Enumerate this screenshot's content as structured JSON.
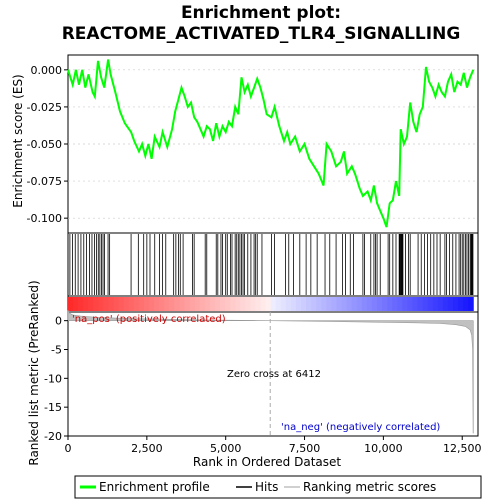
{
  "chart_data": {
    "type": "line",
    "title_line1": "Enrichment plot:",
    "title_line2": "REACTOME_ACTIVATED_TLR4_SIGNALLING",
    "ylabel_top": "Enrichment score (ES)",
    "ylabel_bottom": "Ranked list metric (PreRanked)",
    "xlabel": "Rank in Ordered Dataset",
    "xlim": [
      0,
      13000
    ],
    "x_ticks": [
      0,
      2500,
      5000,
      7500,
      10000,
      12500
    ],
    "x_tick_labels": [
      "0",
      "2,500",
      "5,000",
      "7,500",
      "10,000",
      "12,500"
    ],
    "es_ylim": [
      -0.11,
      0.01
    ],
    "es_ticks": [
      0.0,
      -0.025,
      -0.05,
      -0.075,
      -0.1
    ],
    "es_tick_labels": [
      "0.000",
      "-0.025",
      "-0.050",
      "-0.075",
      "-0.100"
    ],
    "metric_ylim": [
      -20,
      1.5
    ],
    "metric_ticks": [
      0,
      -5,
      -10,
      -15,
      -20
    ],
    "metric_tick_labels": [
      "0",
      "-5",
      "-10",
      "-15",
      "-20"
    ],
    "zero_cross": 6412,
    "zero_cross_label": "Zero cross at 6412",
    "pos_label": "'na_pos' (positively correlated)",
    "neg_label": "'na_neg' (negatively correlated)",
    "n_genes": 12850,
    "es_points": [
      [
        0,
        0
      ],
      [
        150,
        -0.01
      ],
      [
        250,
        0.0
      ],
      [
        350,
        -0.01
      ],
      [
        450,
        0.0
      ],
      [
        550,
        -0.012
      ],
      [
        650,
        -0.003
      ],
      [
        780,
        -0.015
      ],
      [
        850,
        -0.018
      ],
      [
        950,
        0.006
      ],
      [
        1050,
        -0.005
      ],
      [
        1150,
        -0.012
      ],
      [
        1270,
        0.007
      ],
      [
        1350,
        -0.003
      ],
      [
        1500,
        -0.015
      ],
      [
        1650,
        -0.028
      ],
      [
        1800,
        -0.036
      ],
      [
        2000,
        -0.042
      ],
      [
        2100,
        -0.048
      ],
      [
        2250,
        -0.055
      ],
      [
        2350,
        -0.05
      ],
      [
        2450,
        -0.058
      ],
      [
        2550,
        -0.05
      ],
      [
        2650,
        -0.06
      ],
      [
        2750,
        -0.045
      ],
      [
        2900,
        -0.052
      ],
      [
        3000,
        -0.042
      ],
      [
        3150,
        -0.052
      ],
      [
        3300,
        -0.04
      ],
      [
        3400,
        -0.028
      ],
      [
        3500,
        -0.02
      ],
      [
        3600,
        -0.012
      ],
      [
        3700,
        -0.018
      ],
      [
        3800,
        -0.025
      ],
      [
        3900,
        -0.022
      ],
      [
        4000,
        -0.032
      ],
      [
        4100,
        -0.035
      ],
      [
        4200,
        -0.04
      ],
      [
        4300,
        -0.045
      ],
      [
        4400,
        -0.038
      ],
      [
        4500,
        -0.04
      ],
      [
        4600,
        -0.048
      ],
      [
        4700,
        -0.036
      ],
      [
        4800,
        -0.045
      ],
      [
        4900,
        -0.038
      ],
      [
        5000,
        -0.042
      ],
      [
        5100,
        -0.035
      ],
      [
        5200,
        -0.038
      ],
      [
        5300,
        -0.025
      ],
      [
        5400,
        -0.03
      ],
      [
        5500,
        -0.005
      ],
      [
        5600,
        -0.015
      ],
      [
        5700,
        -0.01
      ],
      [
        5800,
        -0.018
      ],
      [
        5900,
        -0.012
      ],
      [
        6000,
        -0.006
      ],
      [
        6100,
        -0.012
      ],
      [
        6200,
        -0.02
      ],
      [
        6300,
        -0.03
      ],
      [
        6450,
        -0.032
      ],
      [
        6550,
        -0.025
      ],
      [
        6700,
        -0.038
      ],
      [
        6850,
        -0.048
      ],
      [
        6950,
        -0.042
      ],
      [
        7050,
        -0.05
      ],
      [
        7200,
        -0.045
      ],
      [
        7350,
        -0.055
      ],
      [
        7500,
        -0.05
      ],
      [
        7650,
        -0.06
      ],
      [
        7800,
        -0.065
      ],
      [
        7950,
        -0.07
      ],
      [
        8100,
        -0.078
      ],
      [
        8200,
        -0.05
      ],
      [
        8350,
        -0.055
      ],
      [
        8500,
        -0.065
      ],
      [
        8650,
        -0.062
      ],
      [
        8750,
        -0.055
      ],
      [
        8850,
        -0.07
      ],
      [
        9000,
        -0.065
      ],
      [
        9100,
        -0.07
      ],
      [
        9250,
        -0.08
      ],
      [
        9350,
        -0.085
      ],
      [
        9500,
        -0.082
      ],
      [
        9600,
        -0.088
      ],
      [
        9700,
        -0.078
      ],
      [
        9800,
        -0.09
      ],
      [
        9900,
        -0.095
      ],
      [
        10000,
        -0.1
      ],
      [
        10100,
        -0.106
      ],
      [
        10200,
        -0.09
      ],
      [
        10300,
        -0.088
      ],
      [
        10400,
        -0.075
      ],
      [
        10500,
        -0.085
      ],
      [
        10550,
        -0.04
      ],
      [
        10650,
        -0.05
      ],
      [
        10750,
        -0.045
      ],
      [
        10850,
        -0.022
      ],
      [
        10950,
        -0.035
      ],
      [
        11050,
        -0.042
      ],
      [
        11150,
        -0.03
      ],
      [
        11250,
        -0.025
      ],
      [
        11350,
        0.002
      ],
      [
        11450,
        -0.008
      ],
      [
        11550,
        -0.012
      ],
      [
        11650,
        -0.018
      ],
      [
        11750,
        -0.01
      ],
      [
        11850,
        -0.015
      ],
      [
        11950,
        -0.018
      ],
      [
        12050,
        -0.008
      ],
      [
        12150,
        -0.003
      ],
      [
        12250,
        -0.015
      ],
      [
        12350,
        -0.008
      ],
      [
        12450,
        -0.01
      ],
      [
        12550,
        -0.002
      ],
      [
        12650,
        -0.012
      ],
      [
        12750,
        -0.005
      ],
      [
        12850,
        0.0
      ]
    ],
    "hits": [
      60,
      140,
      230,
      320,
      410,
      500,
      590,
      680,
      760,
      840,
      900,
      960,
      1010,
      1060,
      1110,
      1160,
      1270,
      1320,
      2000,
      2230,
      2400,
      2500,
      2600,
      2750,
      2900,
      3000,
      3100,
      3350,
      3420,
      3500,
      3560,
      3650,
      3950,
      4000,
      4350,
      4400,
      4700,
      4750,
      4850,
      4900,
      5000,
      5050,
      5150,
      5200,
      5300,
      5350,
      5400,
      5450,
      5500,
      5550,
      5600,
      5700,
      5800,
      5900,
      5950,
      6000,
      6150,
      6450,
      6550,
      6900,
      7000,
      7150,
      7350,
      7550,
      7700,
      7900,
      8150,
      8300,
      8500,
      8700,
      8800,
      8950,
      9050,
      9350,
      9400,
      9600,
      9700,
      9750,
      9800,
      9900,
      10150,
      10200,
      10300,
      10400,
      10500,
      10520,
      10540,
      10560,
      10580,
      10600,
      10620,
      10700,
      10800,
      10850,
      11100,
      11200,
      11300,
      11400,
      11500,
      11600,
      11700,
      11800,
      11950,
      12000,
      12100,
      12200,
      12300,
      12400,
      12450,
      12500,
      12550,
      12600,
      12650,
      12700,
      12750,
      12780,
      12800,
      12820,
      12840
    ],
    "metric_points": [
      [
        0,
        1.8
      ],
      [
        50,
        1.3
      ],
      [
        150,
        1.0
      ],
      [
        400,
        0.8
      ],
      [
        1000,
        0.55
      ],
      [
        2000,
        0.38
      ],
      [
        3000,
        0.25
      ],
      [
        4000,
        0.15
      ],
      [
        5000,
        0.08
      ],
      [
        6000,
        0.03
      ],
      [
        6412,
        0.0
      ],
      [
        7000,
        -0.05
      ],
      [
        8000,
        -0.12
      ],
      [
        9000,
        -0.2
      ],
      [
        10000,
        -0.28
      ],
      [
        11000,
        -0.38
      ],
      [
        11800,
        -0.5
      ],
      [
        12300,
        -0.7
      ],
      [
        12600,
        -1.0
      ],
      [
        12750,
        -1.6
      ],
      [
        12800,
        -2.5
      ],
      [
        12830,
        -5
      ],
      [
        12845,
        -19.5
      ],
      [
        12850,
        -19.5
      ]
    ]
  },
  "legend": {
    "items": [
      {
        "label": "Enrichment profile",
        "color": "#00ff00"
      },
      {
        "label": "Hits",
        "color": "#000000"
      },
      {
        "label": "Ranking metric scores",
        "color": "#c0c0c0"
      }
    ]
  },
  "colors": {
    "es_line": "#00ff00",
    "hit": "#000000",
    "metric_fill": "#c0c0c0",
    "pos_band": "#ff0000",
    "neg_band": "#0000ff",
    "zero_line": "#aaaaaa"
  }
}
